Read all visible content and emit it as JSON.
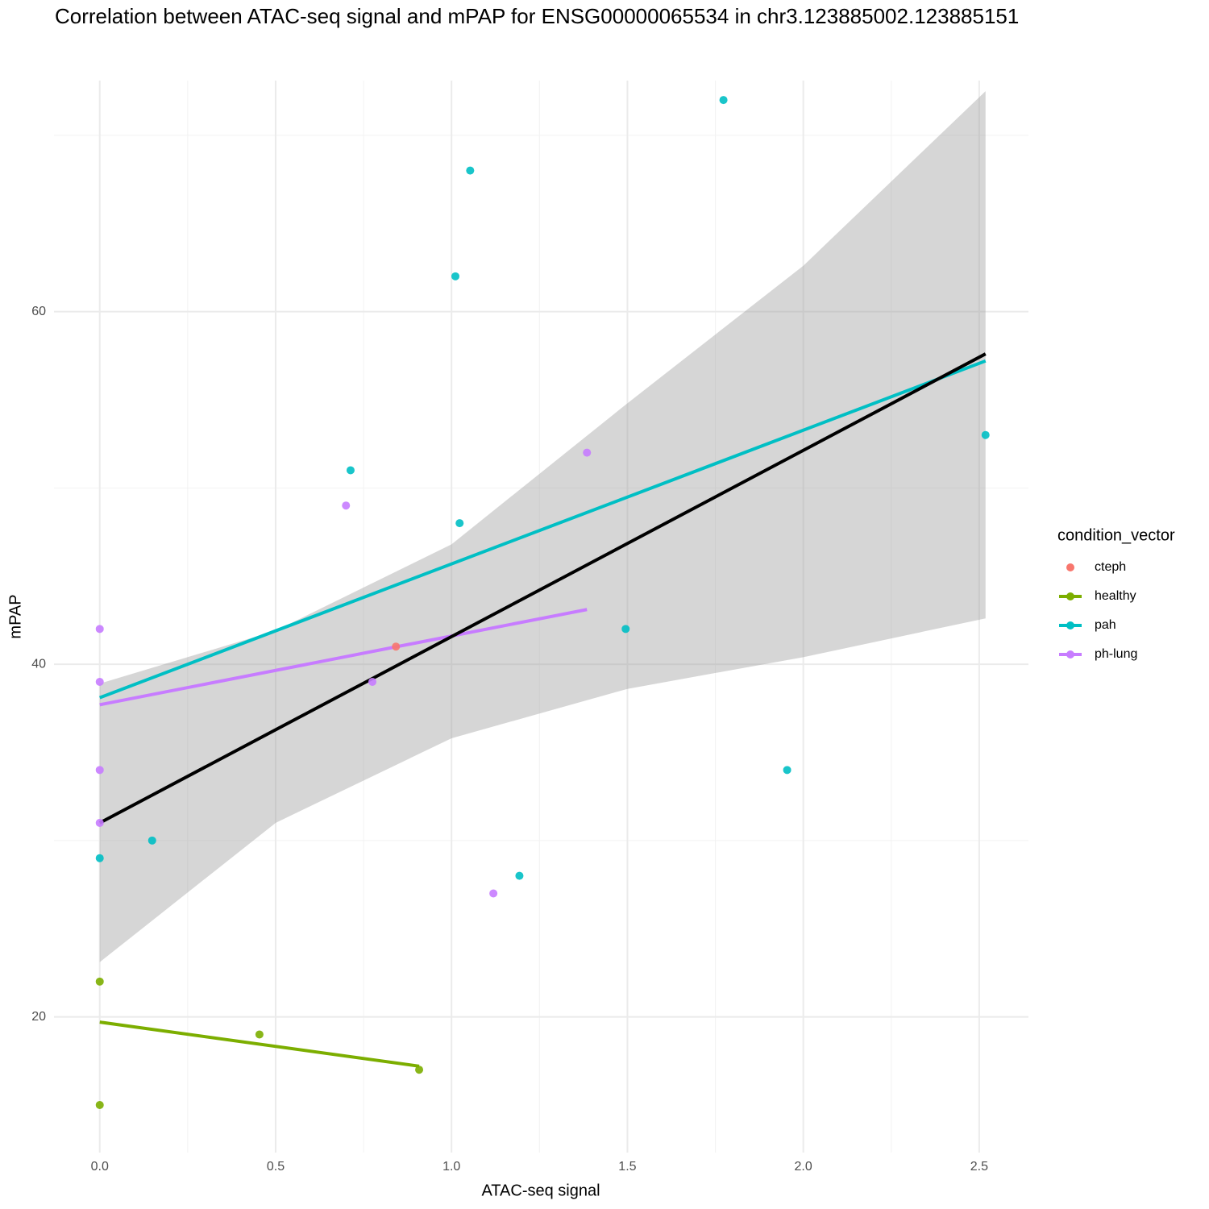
{
  "chart_data": {
    "type": "scatter",
    "title": "Correlation between ATAC-seq signal and mPAP for ENSG00000065534 in chr3.123885002.123885151",
    "x_label": "ATAC-seq signal",
    "y_label": "mPAP",
    "xlim": [
      -0.13,
      2.64
    ],
    "ylim": [
      12.3,
      73.1
    ],
    "xticks": [
      {
        "value": 0,
        "label": "0.0"
      },
      0.5,
      {
        "value": 1,
        "label": "1.0"
      },
      1.5,
      {
        "value": 2,
        "label": "2.0"
      },
      2.5
    ],
    "yticks": [
      20,
      40,
      60
    ],
    "xminor": [
      0.25,
      0.75,
      1.25,
      1.75,
      2.25
    ],
    "yminor": [
      30,
      50,
      70
    ],
    "grid": true,
    "legend_title": "condition_vector",
    "legend_position": "right",
    "series": [
      {
        "name": "cteph",
        "color": "#F8766D",
        "x": [
          0.842
        ],
        "values": [
          41
        ]
      },
      {
        "name": "healthy",
        "color": "#7CAE00",
        "x": [
          0,
          0.454,
          0.908,
          0
        ],
        "values": [
          22,
          19,
          17,
          15
        ],
        "fit": {
          "x": [
            0,
            0.908
          ],
          "y": [
            19.7,
            17.2
          ]
        }
      },
      {
        "name": "pah",
        "color": "#00BFC4",
        "x": [
          1.773,
          1.053,
          1.011,
          0.713,
          1.023,
          2.518,
          1.495,
          1.954,
          0.149,
          0,
          1.193
        ],
        "values": [
          72,
          68,
          62,
          51,
          48,
          53,
          42,
          34,
          30,
          29,
          28
        ],
        "fit": {
          "x": [
            0,
            2.518
          ],
          "y": [
            38.1,
            57.2
          ]
        }
      },
      {
        "name": "ph-lung",
        "color": "#C77CFF",
        "x": [
          0,
          0,
          0,
          0,
          0.7,
          1.385,
          0.775,
          1.119
        ],
        "values": [
          42,
          39,
          34,
          31,
          49,
          52,
          39,
          27
        ],
        "fit": {
          "x": [
            0,
            1.385
          ],
          "y": [
            37.7,
            43.1
          ]
        }
      }
    ],
    "overall_fit": {
      "color": "#000000",
      "x": [
        0,
        2.518
      ],
      "y": [
        31.0,
        57.6
      ]
    },
    "confidence_band": {
      "color": "#999999",
      "x": [
        0,
        0.5,
        1,
        1.5,
        2,
        2.518
      ],
      "lower": [
        23.1,
        31.0,
        35.8,
        38.6,
        40.4,
        42.6
      ],
      "upper": [
        38.9,
        41.9,
        46.8,
        54.8,
        62.6,
        72.5
      ]
    }
  }
}
